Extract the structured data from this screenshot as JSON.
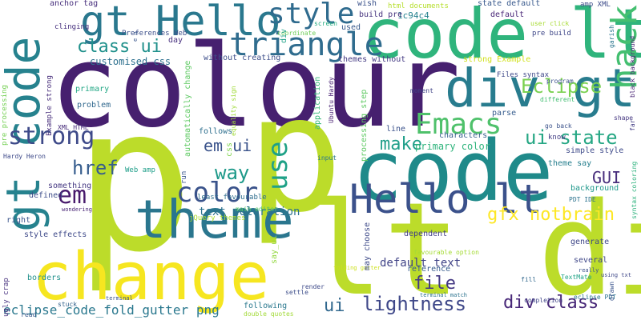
{
  "words": [
    {
      "text": "p",
      "color": "#bcdc2a"
    },
    {
      "text": "colour",
      "color": "#46206f"
    },
    {
      "text": "p",
      "color": "#bcdc2a"
    },
    {
      "text": "code",
      "color": "#1f8a8a"
    },
    {
      "text": "lt div",
      "color": "#bcdc2a"
    },
    {
      "text": "code lt",
      "color": "#2fb47c"
    },
    {
      "text": "change",
      "color": "#f6e620"
    },
    {
      "text": "theme",
      "color": "#2a768e"
    },
    {
      "text": "gt code",
      "color": "#26828e"
    },
    {
      "text": "gt Hello",
      "color": "#2a788e"
    },
    {
      "text": "div gt",
      "color": "#287c8e"
    },
    {
      "text": "Hello lt",
      "color": "#3b518b"
    },
    {
      "text": "triangle",
      "color": "#2f6c8e"
    },
    {
      "text": "Emacs",
      "color": "#4fc16b"
    },
    {
      "text": "style",
      "color": "#2f6b8e"
    },
    {
      "text": "strong",
      "color": "#3e4a89"
    },
    {
      "text": "color",
      "color": "#3a538b"
    },
    {
      "text": "use",
      "color": "#1fa187"
    },
    {
      "text": "hack",
      "color": "#44bf70"
    },
    {
      "text": "ui state",
      "color": "#26a784"
    },
    {
      "text": "lightness",
      "color": "#3f4889"
    },
    {
      "text": "way",
      "color": "#1f9a8a"
    },
    {
      "text": "em ui",
      "color": "#3a538b"
    },
    {
      "text": "em",
      "color": "#481a6c"
    },
    {
      "text": "href",
      "color": "#365d8d"
    },
    {
      "text": "Eclipse",
      "color": "#7ad151"
    },
    {
      "text": "class ui",
      "color": "#21918c"
    },
    {
      "text": "gfx notbrain",
      "color": "#fde725"
    },
    {
      "text": "make",
      "color": "#1f9e89"
    },
    {
      "text": "file",
      "color": "#443983"
    },
    {
      "text": "div class",
      "color": "#482878"
    },
    {
      "text": "GUI",
      "color": "#472d7b"
    },
    {
      "text": "ui",
      "color": "#31688e"
    },
    {
      "text": "eclipse_code_fold_gutter png",
      "color": "#2a788e"
    },
    {
      "text": "text coloration",
      "color": "#2c728e"
    },
    {
      "text": "default text",
      "color": "#414487"
    },
    {
      "text": "customised css",
      "color": "#2d708e"
    },
    {
      "text": "primary color",
      "color": "#2fb47c"
    },
    {
      "text": "anchor tag",
      "color": "#472f7d"
    },
    {
      "text": "wish",
      "color": "#3b528b"
    },
    {
      "text": "html documents",
      "color": "#b5de2b"
    },
    {
      "text": "state default",
      "color": "#38598c"
    },
    {
      "text": "amp XML",
      "color": "#3e4c8a"
    },
    {
      "text": "1c94c4",
      "color": "#26828e"
    },
    {
      "text": "default",
      "color": "#482576"
    },
    {
      "text": "build pre",
      "color": "#46337e"
    },
    {
      "text": "clinging",
      "color": "#46307e"
    },
    {
      "text": "Preferences Web",
      "color": "#3c4f8a"
    },
    {
      "text": "coordinate",
      "color": "#6ece58"
    },
    {
      "text": "screen",
      "color": "#25ac82"
    },
    {
      "text": "used",
      "color": "#375a8c"
    },
    {
      "text": "user click",
      "color": "#a8db34"
    },
    {
      "text": "pre build",
      "color": "#3f4788"
    },
    {
      "text": "garish",
      "color": "#2b758e"
    },
    {
      "text": "black background",
      "color": "#482475"
    },
    {
      "text": "themes without",
      "color": "#443a83"
    },
    {
      "text": "strong Example",
      "color": "#d0e11c"
    },
    {
      "text": "without creating",
      "color": "#3d4e8a"
    },
    {
      "text": "day",
      "color": "#462f7e"
    },
    {
      "text": "application",
      "color": "#35b779"
    },
    {
      "text": "Files syntax",
      "color": "#3f4889"
    },
    {
      "text": "program",
      "color": "#3b528b"
    },
    {
      "text": "primary",
      "color": "#22a785"
    },
    {
      "text": "automatically change",
      "color": "#5ec962"
    },
    {
      "text": "processing step",
      "color": "#5ec962"
    },
    {
      "text": "moment",
      "color": "#414487"
    },
    {
      "text": "different",
      "color": "#42be71"
    },
    {
      "text": "problem",
      "color": "#31688e"
    },
    {
      "text": "parse",
      "color": "#365c8d"
    },
    {
      "text": "shape",
      "color": "#453781"
    },
    {
      "text": "follows",
      "color": "#2e6f8e"
    },
    {
      "text": "line",
      "color": "#3b528b"
    },
    {
      "text": "characters",
      "color": "#355f8d"
    },
    {
      "text": "go back",
      "color": "#3b528b"
    },
    {
      "text": "simple style",
      "color": "#3e4a89"
    },
    {
      "text": "theme say",
      "color": "#277f8e"
    },
    {
      "text": "Hardy Heron",
      "color": "#3e4a89"
    },
    {
      "text": "XML HTML",
      "color": "#472c7a"
    },
    {
      "text": "input",
      "color": "#2a788e"
    },
    {
      "text": "background",
      "color": "#1f988b"
    },
    {
      "text": "something",
      "color": "#453882"
    },
    {
      "text": "PDT IDE",
      "color": "#2c738e"
    },
    {
      "text": "jQuery themes",
      "color": "#addc30"
    },
    {
      "text": "least favourable",
      "color": "#2e6d8e"
    },
    {
      "text": "defined",
      "color": "#3d4d8a"
    },
    {
      "text": "main editor",
      "color": "#50c46a"
    },
    {
      "text": "wondering",
      "color": "#482475"
    },
    {
      "text": "right",
      "color": "#3a548c"
    },
    {
      "text": "style effects",
      "color": "#3e4989"
    },
    {
      "text": "dependent",
      "color": "#423f85"
    },
    {
      "text": "several",
      "color": "#3f4788"
    },
    {
      "text": "borders",
      "color": "#21918c"
    },
    {
      "text": "generate",
      "color": "#3f4788"
    },
    {
      "text": "reference",
      "color": "#375b8d"
    },
    {
      "text": "following",
      "color": "#2a788e"
    },
    {
      "text": "read",
      "color": "#38598c"
    },
    {
      "text": "stuck",
      "color": "#33638d"
    },
    {
      "text": "double quotes",
      "color": "#a2da37"
    },
    {
      "text": "terminal match",
      "color": "#2c738e"
    },
    {
      "text": "completion",
      "color": "#404588"
    },
    {
      "text": "eclipse PDT",
      "color": "#2b748e"
    },
    {
      "text": "favourable option",
      "color": "#a5db36"
    },
    {
      "text": "folding gutter",
      "color": "#cde11d"
    },
    {
      "text": "terminal",
      "color": "#3a548c"
    },
    {
      "text": "render",
      "color": "#3e4a89"
    },
    {
      "text": "settle",
      "color": "#3d4e8a"
    },
    {
      "text": "TextMate",
      "color": "#20a386"
    },
    {
      "text": "fill",
      "color": "#31688e"
    },
    {
      "text": "really",
      "color": "#3b528b"
    },
    {
      "text": "using txt",
      "color": "#3f4889"
    },
    {
      "text": "know",
      "color": "#433e85"
    },
    {
      "text": "Web amp",
      "color": "#1f9e89"
    },
    {
      "text": "pre processing",
      "color": "#75d054"
    },
    {
      "text": "Example strong",
      "color": "#472d7b"
    },
    {
      "text": "Ubuntu Hardy",
      "color": "#482173"
    },
    {
      "text": "equality sign",
      "color": "#a0da39"
    },
    {
      "text": "css",
      "color": "#7fd34e"
    },
    {
      "text": "run",
      "color": "#39558c"
    },
    {
      "text": "say_ui",
      "color": "#93d741"
    },
    {
      "text": "ugly crap",
      "color": "#46307e"
    },
    {
      "text": "may choose",
      "color": "#3e4a89"
    },
    {
      "text": "far",
      "color": "#433e85"
    },
    {
      "text": "drawn",
      "color": "#3a548c"
    },
    {
      "text": "syntax coloring",
      "color": "#2db27d"
    },
    {
      "text": "e g",
      "color": "#39568c"
    },
    {
      "text": "div",
      "color": "#1fa187"
    }
  ]
}
